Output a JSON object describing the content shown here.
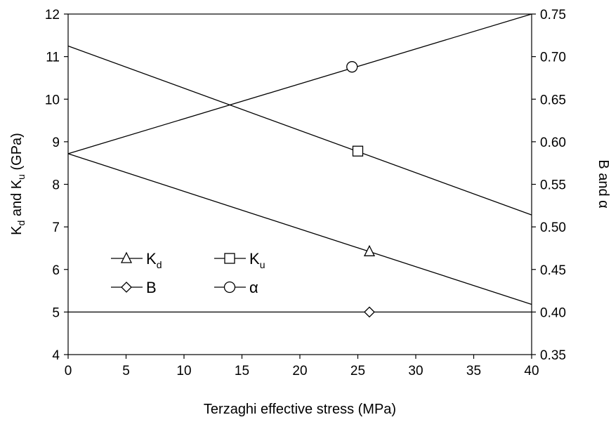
{
  "chart_data": {
    "type": "line",
    "title": "",
    "xlabel": "Terzaghi effective stress (MPa)",
    "ylabel_left": {
      "main": "K",
      "sub1": "d",
      "mid": " and K",
      "sub2": "u",
      "tail": " (GPa)"
    },
    "ylabel_right": {
      "main": "B and ",
      "greek": "α"
    },
    "x_ticks": [
      "0",
      "5",
      "10",
      "15",
      "20",
      "25",
      "30",
      "35",
      "40"
    ],
    "y_left_ticks": [
      "4",
      "5",
      "6",
      "7",
      "8",
      "9",
      "10",
      "11",
      "12"
    ],
    "y_right_ticks": [
      "0.35",
      "0.40",
      "0.45",
      "0.50",
      "0.55",
      "0.60",
      "0.65",
      "0.70",
      "0.75"
    ],
    "xlim": [
      0,
      40
    ],
    "ylim_left": [
      4,
      12
    ],
    "ylim_right": [
      0.35,
      0.75
    ],
    "grid": false,
    "legend_position": "lower-left",
    "series": [
      {
        "name": "Kd",
        "label_main": "K",
        "label_sub": "d",
        "axis": "left",
        "marker": "triangle",
        "x": [
          0,
          40
        ],
        "y": [
          8.72,
          5.18
        ],
        "marker_at": [
          26,
          6.42
        ]
      },
      {
        "name": "Ku",
        "label_main": "K",
        "label_sub": "u",
        "axis": "left",
        "marker": "square",
        "x": [
          0,
          40
        ],
        "y": [
          11.25,
          7.28
        ],
        "marker_at": [
          25,
          8.78
        ]
      },
      {
        "name": "B",
        "label_main": "B",
        "label_sub": "",
        "axis": "right",
        "marker": "diamond",
        "x": [
          0,
          40
        ],
        "y": [
          0.4,
          0.4
        ],
        "marker_at": [
          26,
          0.4
        ]
      },
      {
        "name": "α",
        "label_main": "α",
        "label_sub": "",
        "axis": "right",
        "marker": "circle",
        "x": [
          0,
          40
        ],
        "y": [
          0.586,
          0.75
        ],
        "marker_at": [
          24.5,
          0.688
        ]
      }
    ]
  }
}
